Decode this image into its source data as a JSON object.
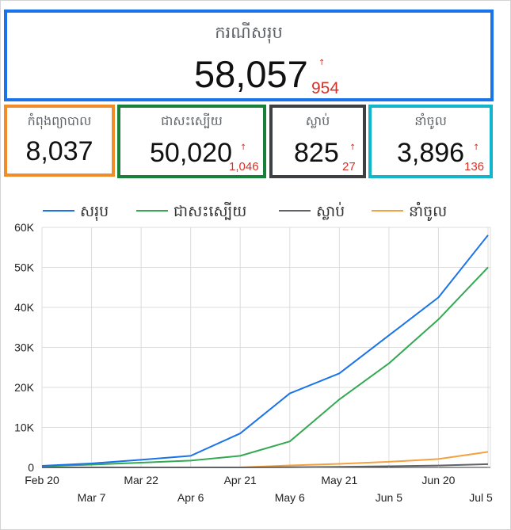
{
  "total": {
    "title": "ករណីសរុប",
    "value": "58,057",
    "delta": "954"
  },
  "stats": [
    {
      "key": "treating",
      "title": "កំពុងព្យាបាល",
      "value": "8,037",
      "delta": "",
      "color": "#f28c28"
    },
    {
      "key": "recovered",
      "title": "ជាសះស្បើយ",
      "value": "50,020",
      "delta": "1,046",
      "color": "#188038"
    },
    {
      "key": "deaths",
      "title": "ស្លាប់",
      "value": "825",
      "delta": "27",
      "color": "#3c4043"
    },
    {
      "key": "imported",
      "title": "នាំចូល",
      "value": "3,896",
      "delta": "136",
      "color": "#12b5cb"
    }
  ],
  "delta_icon": "↑",
  "chart_data": {
    "type": "line",
    "x": [
      "Feb 20",
      "Mar 7",
      "Mar 22",
      "Apr 6",
      "Apr 21",
      "May 6",
      "May 21",
      "Jun 5",
      "Jun 20",
      "Jul 5"
    ],
    "ylim": [
      0,
      60000
    ],
    "yticks": [
      "0",
      "10K",
      "20K",
      "30K",
      "40K",
      "50K",
      "60K"
    ],
    "xticks_upper": [
      "Feb 20",
      "Mar 22",
      "Apr 21",
      "May 21",
      "Jun 20"
    ],
    "xticks_lower": [
      "Mar 7",
      "Apr 6",
      "May 6",
      "Jun 5",
      "Jul 5"
    ],
    "grid": true,
    "legend_position": "top",
    "series": [
      {
        "name": "សរុប",
        "color": "#1a73e8",
        "values": [
          400,
          1000,
          1900,
          2900,
          8500,
          18500,
          23500,
          33000,
          42500,
          58057
        ]
      },
      {
        "name": "ជាសះស្បើយ",
        "color": "#34a853",
        "values": [
          300,
          700,
          1200,
          1700,
          2900,
          6500,
          17000,
          26000,
          37000,
          50020
        ]
      },
      {
        "name": "ស្លាប់",
        "color": "#5f6368",
        "values": [
          0,
          0,
          0,
          0,
          0,
          60,
          150,
          300,
          480,
          825
        ]
      },
      {
        "name": "នាំចូល",
        "color": "#f4a13f",
        "values": [
          0,
          0,
          0,
          0,
          0,
          500,
          900,
          1400,
          2100,
          3896
        ]
      }
    ]
  }
}
